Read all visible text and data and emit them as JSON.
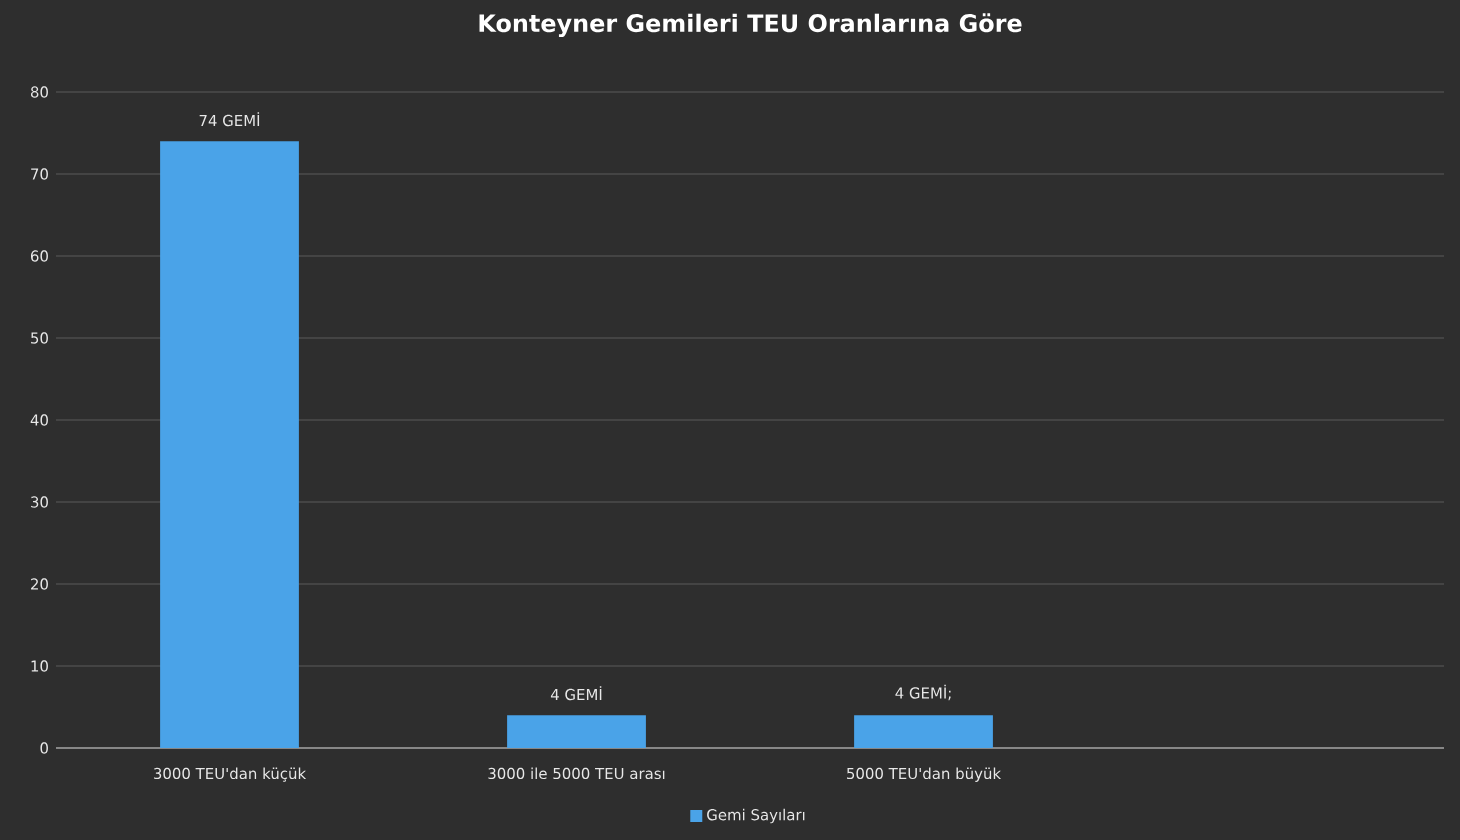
{
  "chart_data": {
    "type": "bar",
    "title": "Konteyner Gemileri TEU Oranlarına Göre",
    "categories": [
      "3000 TEU'dan küçük",
      "3000 ile 5000 TEU arası",
      "5000 TEU'dan büyük",
      null
    ],
    "series": [
      {
        "name": "Gemi Sayıları",
        "color": "#4aa3e8",
        "values": [
          74,
          4,
          4,
          null
        ],
        "value_labels": [
          "74 GEMİ",
          "4 GEMİ",
          "4 GEMİ;",
          null
        ]
      }
    ],
    "ylim": [
      0,
      80
    ],
    "yticks": [
      0,
      10,
      20,
      30,
      40,
      50,
      60,
      70,
      80
    ],
    "grid": "y",
    "legend": "bottom"
  }
}
